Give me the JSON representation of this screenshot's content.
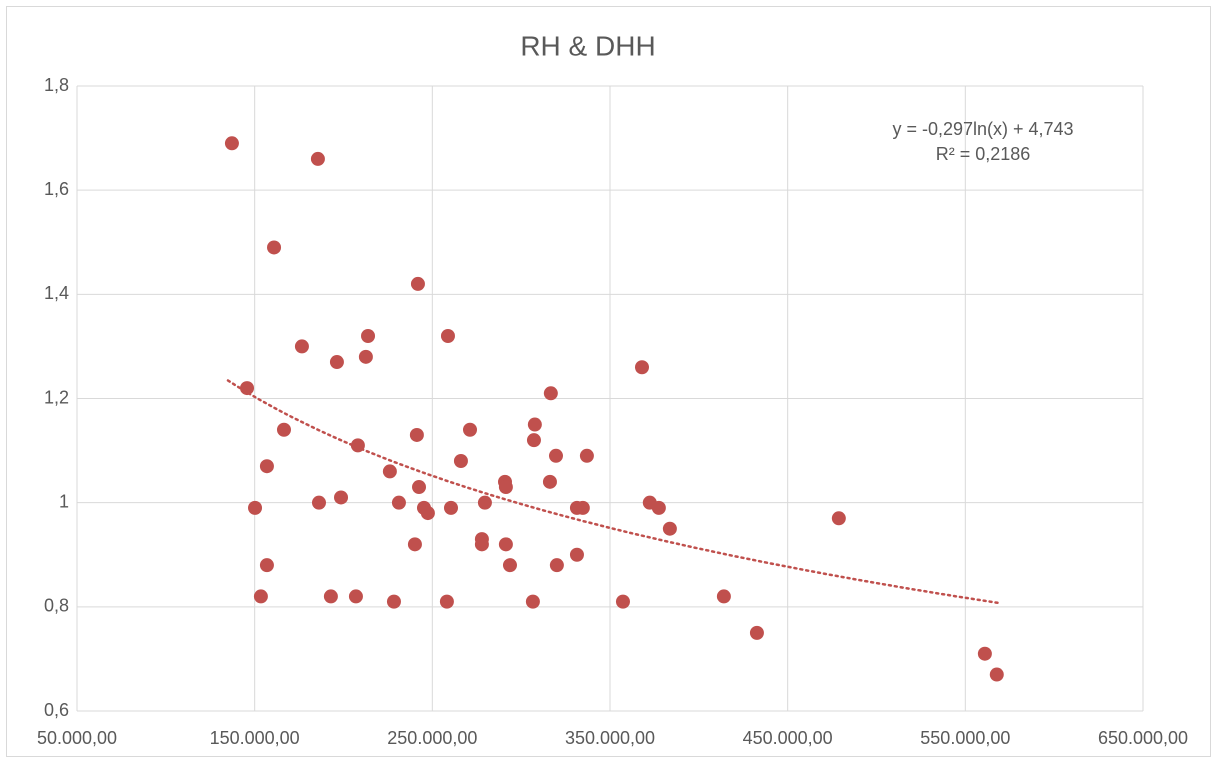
{
  "chart_data": {
    "type": "scatter",
    "title": "RH & DHH",
    "series": [
      {
        "color": "#c0504d",
        "x": [
          137200,
          185600,
          160900,
          241900,
          176600,
          213800,
          258800,
          196300,
          212600,
          368000,
          145700,
          316700,
          166500,
          271200,
          307700,
          208100,
          241300,
          307200,
          319600,
          337000,
          156900,
          266100,
          226100,
          242500,
          290900,
          291400,
          316200,
          198600,
          186200,
          231200,
          279600,
          372400,
          377500,
          150200,
          245300,
          247500,
          260500,
          331400,
          334700,
          383700,
          478800,
          277900,
          277900,
          240200,
          291400,
          331400,
          293700,
          156900,
          320100,
          153500,
          192900,
          207000,
          228400,
          258200,
          306600,
          357300,
          414100,
          432700,
          561000,
          567700
        ],
        "values": [
          1.69,
          1.66,
          1.49,
          1.42,
          1.3,
          1.32,
          1.32,
          1.27,
          1.28,
          1.26,
          1.22,
          1.21,
          1.14,
          1.14,
          1.15,
          1.11,
          1.13,
          1.12,
          1.09,
          1.09,
          1.07,
          1.08,
          1.06,
          1.03,
          1.04,
          1.03,
          1.04,
          1.01,
          1.0,
          1.0,
          1.0,
          1.0,
          0.99,
          0.99,
          0.99,
          0.98,
          0.99,
          0.99,
          0.99,
          0.95,
          0.97,
          0.93,
          0.92,
          0.92,
          0.92,
          0.9,
          0.88,
          0.88,
          0.88,
          0.82,
          0.82,
          0.82,
          0.81,
          0.81,
          0.81,
          0.81,
          0.82,
          0.75,
          0.71,
          0.67
        ]
      }
    ],
    "trendline": {
      "type": "log",
      "a": -0.297,
      "b": 4.743,
      "xrange": [
        135000,
        570000
      ],
      "color": "#c0504d"
    },
    "annotations": [
      "y = -0,297ln(x) + 4,743",
      "R² = 0,2186"
    ],
    "xlim": [
      50000,
      650000
    ],
    "xticks": [
      {
        "value": 50000,
        "label": "50.000,00"
      },
      {
        "value": 150000,
        "label": "150.000,00"
      },
      {
        "value": 250000,
        "label": "250.000,00"
      },
      {
        "value": 350000,
        "label": "350.000,00"
      },
      {
        "value": 450000,
        "label": "450.000,00"
      },
      {
        "value": 550000,
        "label": "550.000,00"
      },
      {
        "value": 650000,
        "label": "650.000,00"
      }
    ],
    "ylim": [
      0.6,
      1.8
    ],
    "yticks": [
      {
        "value": 0.6,
        "label": "0,6"
      },
      {
        "value": 0.8,
        "label": "0,8"
      },
      1,
      {
        "value": 1.2,
        "label": "1,2"
      },
      {
        "value": 1.4,
        "label": "1,4"
      },
      {
        "value": 1.6,
        "label": "1,6"
      },
      {
        "value": 1.8,
        "label": "1,8"
      }
    ],
    "grid": true
  }
}
